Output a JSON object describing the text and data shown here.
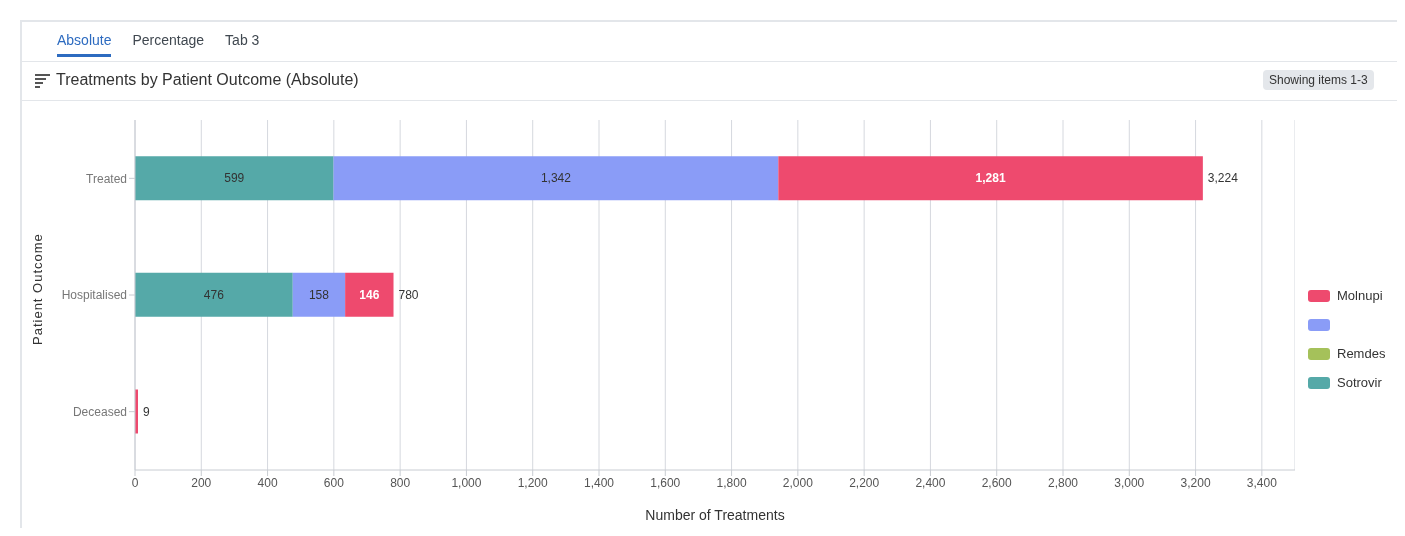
{
  "chart_data": {
    "type": "bar",
    "orientation": "horizontal",
    "stacked": true,
    "title": "Treatments by Patient Outcome (Absolute)",
    "xlabel": "Number of Treatments",
    "ylabel": "Patient Outcome",
    "annotations": [
      "Absolute",
      "Percentage",
      "Tab 3",
      "Showing items 1-3"
    ],
    "categories": [
      "Treated",
      "Hospitalised",
      "Deceased"
    ],
    "series": [
      {
        "name": "Sotrovir",
        "color": "#55a9a8",
        "values": [
          599,
          476,
          0
        ],
        "value_labels": [
          "599",
          "476",
          null
        ]
      },
      {
        "name": "Remdes",
        "color": "#a5c15a",
        "values": [
          null,
          0,
          0
        ],
        "value_labels": [
          null,
          null,
          null
        ]
      },
      {
        "color": "#8a9cf7",
        "values": [
          1342,
          158,
          null
        ],
        "value_labels": [
          "1,342",
          "158",
          null
        ]
      },
      {
        "name": "Molnupi",
        "color": "#ee4a6e",
        "values": [
          1281,
          146,
          9
        ],
        "value_labels": [
          "1,281",
          "146",
          null
        ]
      }
    ],
    "totals": [
      "3,224",
      "780",
      "9"
    ],
    "xlim": [
      0,
      3500
    ],
    "xticks": [
      0,
      {
        "value": 200,
        "label": "200"
      },
      {
        "value": 400,
        "label": "400"
      },
      {
        "value": 600,
        "label": "600"
      },
      {
        "value": 800,
        "label": "800"
      },
      {
        "value": 1000,
        "label": "1,000"
      },
      {
        "value": 1200,
        "label": "1,200"
      },
      {
        "value": 1400,
        "label": "1,400"
      },
      {
        "value": 1600,
        "label": "1,600"
      },
      {
        "value": 1800,
        "label": "1,800"
      },
      {
        "value": 2000,
        "label": "2,000"
      },
      {
        "value": 2200,
        "label": "2,200"
      },
      {
        "value": 2400,
        "label": "2,400"
      },
      {
        "value": 2600,
        "label": "2,600"
      },
      {
        "value": 2800,
        "label": "2,800"
      },
      {
        "value": 3000,
        "label": "3,000"
      },
      {
        "value": 3200,
        "label": "3,200"
      },
      {
        "value": 3400,
        "label": "3,400"
      }
    ],
    "grid": "x",
    "legend": "right"
  }
}
